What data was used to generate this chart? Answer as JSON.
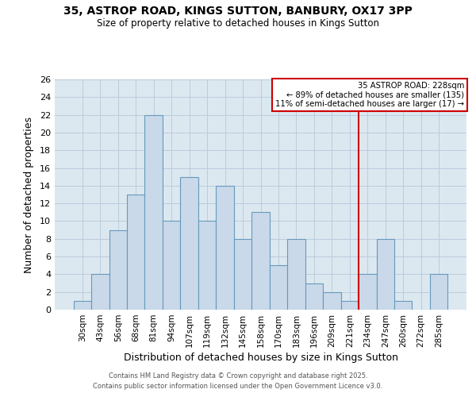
{
  "title": "35, ASTROP ROAD, KINGS SUTTON, BANBURY, OX17 3PP",
  "subtitle": "Size of property relative to detached houses in Kings Sutton",
  "xlabel": "Distribution of detached houses by size in Kings Sutton",
  "ylabel": "Number of detached properties",
  "bar_color": "#c9d9ea",
  "bar_edge_color": "#6699bb",
  "categories": [
    "30sqm",
    "43sqm",
    "56sqm",
    "68sqm",
    "81sqm",
    "94sqm",
    "107sqm",
    "119sqm",
    "132sqm",
    "145sqm",
    "158sqm",
    "170sqm",
    "183sqm",
    "196sqm",
    "209sqm",
    "221sqm",
    "234sqm",
    "247sqm",
    "260sqm",
    "272sqm",
    "285sqm"
  ],
  "values": [
    1,
    4,
    9,
    13,
    22,
    10,
    15,
    10,
    14,
    8,
    11,
    5,
    8,
    3,
    2,
    1,
    4,
    8,
    1,
    0,
    4
  ],
  "ylim": [
    0,
    26
  ],
  "yticks": [
    0,
    2,
    4,
    6,
    8,
    10,
    12,
    14,
    16,
    18,
    20,
    22,
    24,
    26
  ],
  "vline_index": 15.5,
  "annotation_title": "35 ASTROP ROAD: 228sqm",
  "annotation_line1": "← 89% of detached houses are smaller (135)",
  "annotation_line2": "11% of semi-detached houses are larger (17) →",
  "annotation_box_color": "#ffffff",
  "annotation_border_color": "#cc0000",
  "vline_color": "#cc0000",
  "footer1": "Contains HM Land Registry data © Crown copyright and database right 2025.",
  "footer2": "Contains public sector information licensed under the Open Government Licence v3.0.",
  "background_color": "#ffffff",
  "plot_bg_color": "#dce8f0",
  "grid_color": "#bbccdd"
}
